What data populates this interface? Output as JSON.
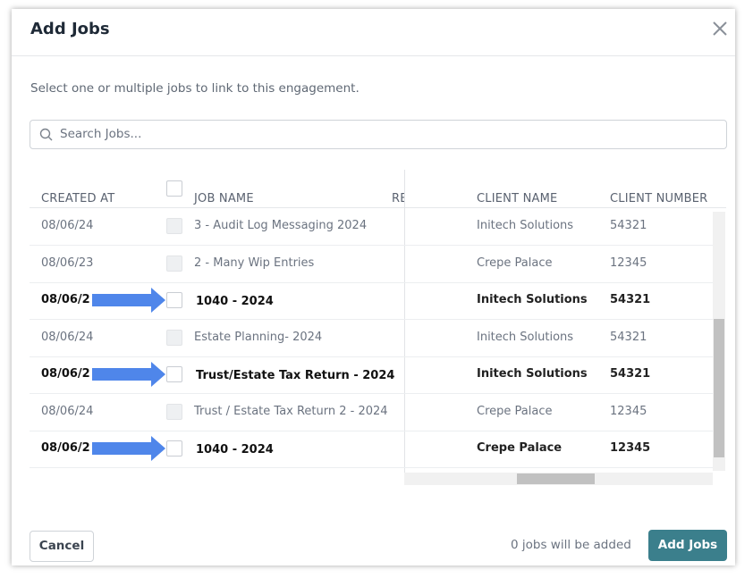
{
  "header": {
    "title": "Add Jobs"
  },
  "description": "Select one or multiple jobs to link to this engagement.",
  "search": {
    "placeholder": "Search Jobs..."
  },
  "table": {
    "columns": [
      "CREATED AT",
      "JOB NAME",
      "RE",
      "CLIENT NAME",
      "CLIENT NUMBER"
    ],
    "rows": [
      {
        "created": "08/06/24",
        "job": "3 - Audit Log Messaging 2024",
        "client": "Initech Solutions",
        "number": "54321",
        "selectable": false
      },
      {
        "created": "08/06/23",
        "job": "2 - Many Wip Entries",
        "client": "Crepe Palace",
        "number": "12345",
        "selectable": false
      },
      {
        "created": "08/06/2",
        "job": "1040 - 2024",
        "client": "Initech Solutions",
        "number": "54321",
        "selectable": true
      },
      {
        "created": "08/06/24",
        "job": "Estate Planning- 2024",
        "client": "Initech Solutions",
        "number": "54321",
        "selectable": false
      },
      {
        "created": "08/06/2",
        "job": "Trust/Estate Tax Return - 2024",
        "client": "Initech Solutions",
        "number": "54321",
        "selectable": true
      },
      {
        "created": "08/06/24",
        "job": "Trust / Estate Tax Return 2 - 2024",
        "client": "Crepe Palace",
        "number": "12345",
        "selectable": false
      },
      {
        "created": "08/06/2",
        "job": "1040 - 2024",
        "client": "Crepe Palace",
        "number": "12345",
        "selectable": true
      }
    ]
  },
  "footer": {
    "cancel": "Cancel",
    "status": "0 jobs will be added",
    "submit": "Add Jobs"
  }
}
